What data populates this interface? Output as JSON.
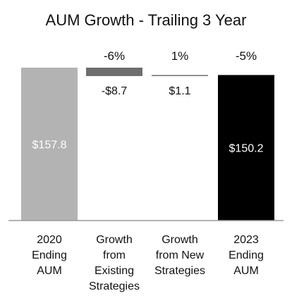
{
  "chart_data": {
    "type": "waterfall bar",
    "title": "AUM Growth - Trailing 3 Year",
    "categories": [
      "2020 Ending AUM",
      "Growth from Existing Strategies",
      "Growth from New Strategies",
      "2023 Ending AUM"
    ],
    "category_lines": [
      [
        "2020",
        "Ending",
        "AUM"
      ],
      [
        "Growth",
        "from",
        "Existing",
        "Strategies"
      ],
      [
        "Growth",
        "from New",
        "Strategies"
      ],
      [
        "2023",
        "Ending",
        "AUM"
      ]
    ],
    "values": [
      157.8,
      -8.7,
      1.1,
      150.2
    ],
    "bar_kinds": [
      "total",
      "delta",
      "delta",
      "total"
    ],
    "value_labels": [
      "$157.8",
      "-$8.7",
      "$1.1",
      "$150.2"
    ],
    "percent_labels": [
      "",
      "-6%",
      "1%",
      "-5%"
    ],
    "ylim": [
      0,
      157.8
    ],
    "xlabel": "",
    "ylabel": "",
    "grid": false,
    "colors": [
      "#b3b3b3",
      "#6e6e6e",
      "#6e6e6e",
      "#000000"
    ],
    "value_label_colors": [
      "#ffffff",
      "#111111",
      "#111111",
      "#ffffff"
    ]
  }
}
